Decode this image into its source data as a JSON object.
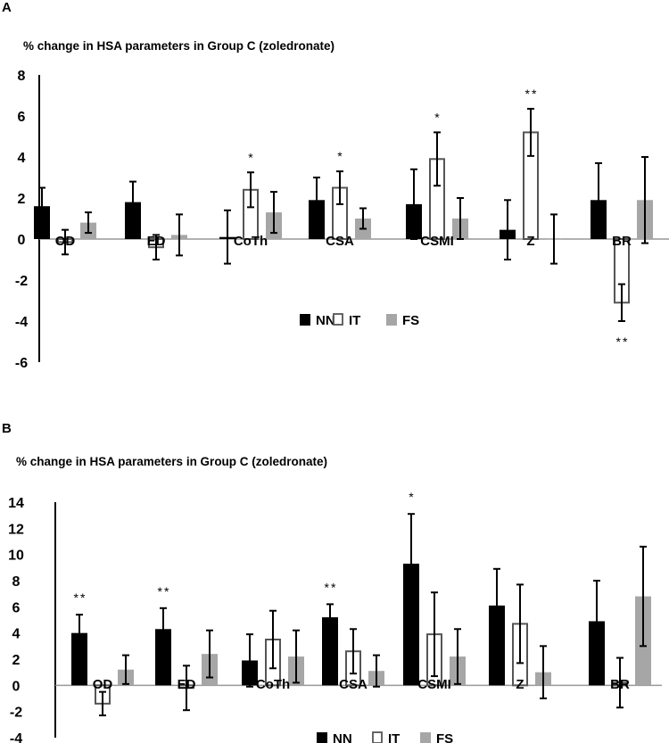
{
  "chart_data": [
    {
      "panel": "A",
      "type": "bar",
      "title": "% change in HSA parameters in Group C (zoledronate)",
      "categories": [
        "OD",
        "ED",
        "CoTh",
        "CSA",
        "CSMI",
        "Z",
        "BR"
      ],
      "ylim": [
        -6,
        8
      ],
      "yticks": [
        8,
        6,
        4,
        2,
        0,
        -2,
        -4,
        -6
      ],
      "series": [
        {
          "name": "NN",
          "values": [
            1.6,
            1.8,
            0.1,
            1.9,
            1.7,
            0.45,
            1.9
          ],
          "errors": [
            0.9,
            1.0,
            1.3,
            1.1,
            1.7,
            1.45,
            1.8
          ],
          "color": "#000000",
          "style": "solid"
        },
        {
          "name": "IT",
          "values": [
            -0.15,
            -0.4,
            2.4,
            2.5,
            3.9,
            5.2,
            -3.1
          ],
          "errors": [
            0.6,
            0.6,
            0.85,
            0.8,
            1.3,
            1.15,
            0.9
          ],
          "color": "#555555",
          "style": "outline"
        },
        {
          "name": "FS",
          "values": [
            0.8,
            0.2,
            1.3,
            1.0,
            1.0,
            0.0,
            1.9
          ],
          "errors": [
            0.5,
            1.0,
            1.0,
            0.5,
            1.0,
            1.2,
            2.1
          ],
          "color": "#a6a6a6",
          "style": "solid"
        }
      ],
      "annotations": [
        {
          "category": "CoTh",
          "series": "IT",
          "text": "*",
          "side": "above"
        },
        {
          "category": "CSA",
          "series": "IT",
          "text": "*",
          "side": "above"
        },
        {
          "category": "CSMI",
          "series": "IT",
          "text": "*",
          "side": "above"
        },
        {
          "category": "Z",
          "series": "IT",
          "text": "**",
          "side": "above"
        },
        {
          "category": "BR",
          "series": "IT",
          "text": "**",
          "side": "below"
        }
      ],
      "legend": [
        "NN",
        "IT",
        "FS"
      ],
      "legend_position": "bottom-center"
    },
    {
      "panel": "B",
      "type": "bar",
      "title": "% change in HSA parameters in Group C (zoledronate)",
      "categories": [
        "OD",
        "ED",
        "CoTh",
        "CSA",
        "CSMI",
        "Z",
        "BR"
      ],
      "ylim": [
        -4,
        14
      ],
      "yticks": [
        14,
        12,
        10,
        8,
        6,
        4,
        2,
        0,
        -2,
        -4
      ],
      "series": [
        {
          "name": "NN",
          "values": [
            4.0,
            4.3,
            1.9,
            5.2,
            9.3,
            6.1,
            4.9
          ],
          "errors": [
            1.4,
            1.6,
            2.0,
            1.0,
            3.8,
            2.8,
            3.1
          ],
          "color": "#000000",
          "style": "solid"
        },
        {
          "name": "IT",
          "values": [
            -1.4,
            -0.2,
            3.5,
            2.6,
            3.9,
            4.7,
            0.2
          ],
          "errors": [
            0.9,
            1.7,
            2.2,
            1.7,
            3.2,
            3.0,
            1.9
          ],
          "color": "#555555",
          "style": "outline"
        },
        {
          "name": "FS",
          "values": [
            1.2,
            2.4,
            2.2,
            1.1,
            2.2,
            1.0,
            6.8
          ],
          "errors": [
            1.1,
            1.8,
            2.0,
            1.2,
            2.1,
            2.0,
            3.8
          ],
          "color": "#a6a6a6",
          "style": "solid"
        }
      ],
      "annotations": [
        {
          "category": "OD",
          "series": "NN",
          "text": "**",
          "side": "above"
        },
        {
          "category": "ED",
          "series": "NN",
          "text": "**",
          "side": "above"
        },
        {
          "category": "CSA",
          "series": "NN",
          "text": "**",
          "side": "above"
        },
        {
          "category": "CSMI",
          "series": "NN",
          "text": "*",
          "side": "above"
        }
      ],
      "legend": [
        "NN",
        "IT",
        "FS"
      ],
      "legend_position": "bottom-center"
    }
  ]
}
